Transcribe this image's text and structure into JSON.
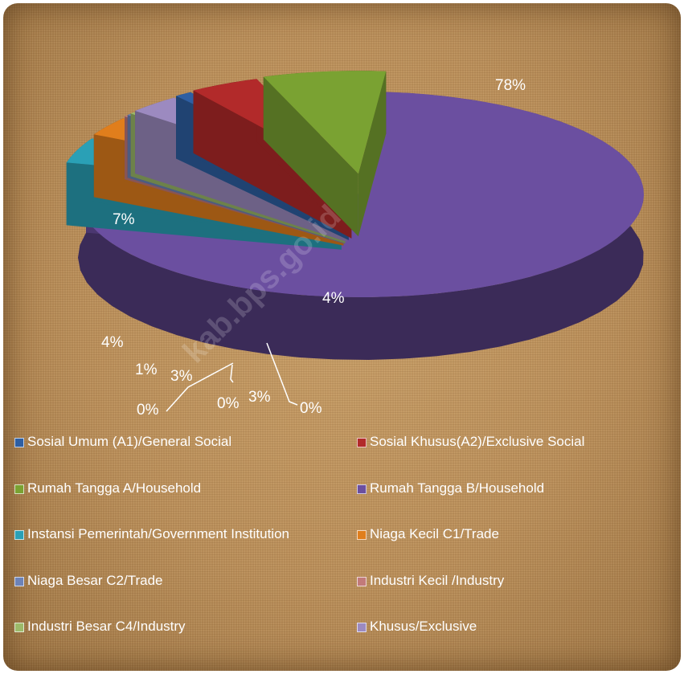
{
  "chart_data": {
    "type": "pie",
    "series": [
      {
        "name": "Sosial Umum (A1)/General Social",
        "value": 1,
        "label": "1%",
        "color": "#2e5fa3"
      },
      {
        "name": "Sosial Khusus(A2)/Exclusive Social",
        "value": 4,
        "label": "4%",
        "color": "#b22a2a"
      },
      {
        "name": "Rumah Tangga A/Household",
        "value": 7,
        "label": "7%",
        "color": "#7aa232"
      },
      {
        "name": "Rumah Tangga B/Household",
        "value": 78,
        "label": "78%",
        "color": "#6b4fa0"
      },
      {
        "name": "Instansi Pemerintah/Government Institution",
        "value": 4,
        "label": "4%",
        "color": "#2aa0b6"
      },
      {
        "name": "Niaga Kecil  C1/Trade",
        "value": 3,
        "label": "3%",
        "color": "#e07e1c"
      },
      {
        "name": "Niaga Besar C2/Trade",
        "value": 0,
        "label": "0%",
        "color": "#6d83b8"
      },
      {
        "name": "Industri Kecil /Industry",
        "value": 0,
        "label": "0%",
        "color": "#c27a7a"
      },
      {
        "name": "Industri Besar C4/Industry",
        "value": 0,
        "label": "0%",
        "color": "#9cba6a"
      },
      {
        "name": "Khusus/Exclusive",
        "value": 3,
        "label": "3%",
        "color": "#9c8ac0"
      }
    ],
    "legend_position": "bottom",
    "style": "3d-exploded"
  },
  "watermark": "kab.bps.go.id",
  "legend_order": [
    "Sosial Umum (A1)/General Social",
    "Sosial Khusus(A2)/Exclusive Social",
    "Rumah Tangga A/Household",
    "Rumah Tangga B/Household",
    "Instansi Pemerintah/Government Institution",
    "Niaga Kecil  C1/Trade",
    "Niaga Besar C2/Trade",
    "Industri Kecil /Industry",
    "Industri Besar C4/Industry",
    "Khusus/Exclusive"
  ]
}
